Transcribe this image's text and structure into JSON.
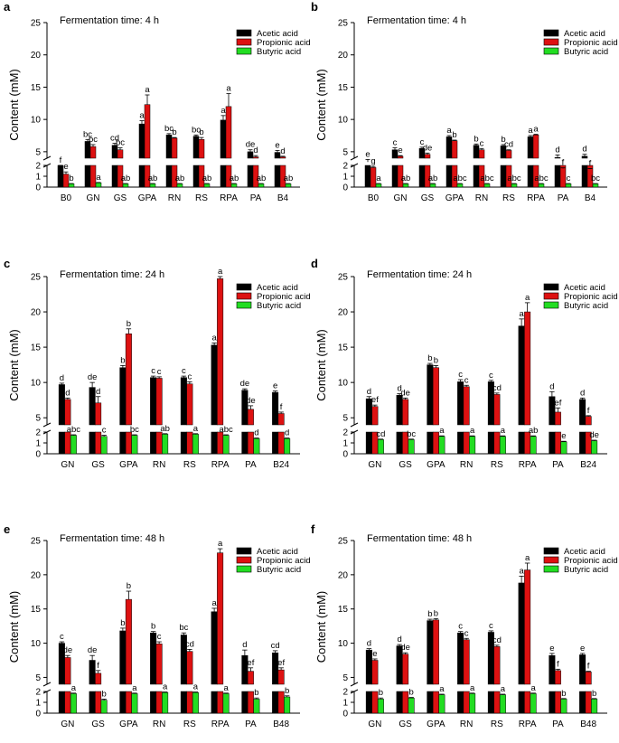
{
  "colors": {
    "acetic": "#000000",
    "propionic": "#dd1111",
    "butyric": "#22dd22",
    "axis": "#000000"
  },
  "legend": [
    "Acetic acid",
    "Propionic acid",
    "Butyric acid"
  ],
  "chart_data": [
    {
      "type": "bar",
      "panel_label": "a",
      "title": "Fermentation time: 4 h",
      "ylabel": "Content (mM)",
      "xlabel": "",
      "upper_ticks": [
        5,
        10,
        15,
        20,
        25
      ],
      "lower_ticks": [
        0,
        1,
        2
      ],
      "ylim_upper": [
        4,
        25
      ],
      "ylim_lower": [
        0,
        2
      ],
      "categories": [
        "B0",
        "GN",
        "GS",
        "GPA",
        "RN",
        "RS",
        "RPA",
        "PA",
        "B4"
      ],
      "series": [
        {
          "name": "Acetic acid",
          "values": [
            2.0,
            6.6,
            6.0,
            9.3,
            7.6,
            7.4,
            9.9,
            5.0,
            4.9
          ],
          "errors": [
            0.4,
            0.3,
            0.3,
            0.5,
            0.2,
            0.2,
            0.7,
            0.3,
            0.3
          ],
          "letters": [
            "f",
            "bc",
            "cd",
            "a",
            "bc",
            "bc",
            "a",
            "de",
            "e"
          ]
        },
        {
          "name": "Propionic acid",
          "values": [
            1.2,
            5.8,
            5.3,
            12.3,
            7.1,
            6.9,
            12.0,
            4.2,
            4.2
          ],
          "errors": [
            0.2,
            0.3,
            0.3,
            1.5,
            0.1,
            0.3,
            2.0,
            0.2,
            0.1
          ],
          "letters": [
            "e",
            "bc",
            "bc",
            "a",
            "b",
            "b",
            "a",
            "d",
            "d"
          ]
        },
        {
          "name": "Butyric acid",
          "values": [
            0.3,
            0.4,
            0.3,
            0.3,
            0.3,
            0.3,
            0.3,
            0.3,
            0.3
          ],
          "errors": [
            0.03,
            0.03,
            0.03,
            0.03,
            0.03,
            0.03,
            0.03,
            0.03,
            0.03
          ],
          "letters": [
            "b",
            "a",
            "ab",
            "ab",
            "ab",
            "ab",
            "ab",
            "ab",
            "ab"
          ]
        }
      ]
    },
    {
      "type": "bar",
      "panel_label": "b",
      "title": "Fermentation time: 4 h",
      "ylabel": "Content (mM)",
      "xlabel": "",
      "upper_ticks": [
        5,
        10,
        15,
        20,
        25
      ],
      "lower_ticks": [
        0,
        1,
        2
      ],
      "ylim_upper": [
        4,
        25
      ],
      "ylim_lower": [
        0,
        2
      ],
      "categories": [
        "B0",
        "GN",
        "GS",
        "GPA",
        "RN",
        "RS",
        "RPA",
        "PA",
        "B4"
      ],
      "series": [
        {
          "name": "Acetic acid",
          "values": [
            3.4,
            5.3,
            5.5,
            7.3,
            6.0,
            5.9,
            7.3,
            4.1,
            4.3
          ],
          "errors": [
            0.4,
            0.3,
            0.2,
            0.2,
            0.2,
            0.2,
            0.2,
            0.4,
            0.3
          ],
          "letters": [
            "e",
            "c",
            "c",
            "a",
            "b",
            "b",
            "a",
            "d",
            "d"
          ]
        },
        {
          "name": "Propionic acid",
          "values": [
            1.8,
            4.3,
            4.6,
            6.7,
            5.3,
            5.2,
            7.6,
            2.4,
            2.3
          ],
          "errors": [
            0.1,
            0.1,
            0.2,
            0.1,
            0.2,
            0.1,
            0.1,
            0.1,
            0.1
          ],
          "letters": [
            "g",
            "e",
            "de",
            "b",
            "c",
            "cd",
            "a",
            "f",
            "f"
          ]
        },
        {
          "name": "Butyric acid",
          "values": [
            0.3,
            0.3,
            0.3,
            0.3,
            0.3,
            0.3,
            0.3,
            0.3,
            0.3
          ],
          "errors": [
            0.03,
            0.03,
            0.03,
            0.03,
            0.03,
            0.03,
            0.03,
            0.03,
            0.03
          ],
          "letters": [
            "a",
            "ab",
            "ab",
            "abc",
            "abc",
            "abc",
            "abc",
            "c",
            "bc"
          ]
        }
      ]
    },
    {
      "type": "bar",
      "panel_label": "c",
      "title": "Fermentation time: 24 h",
      "ylabel": "Content (mM)",
      "xlabel": "",
      "upper_ticks": [
        5,
        10,
        15,
        20,
        25
      ],
      "lower_ticks": [
        0,
        1,
        2
      ],
      "ylim_upper": [
        4,
        25
      ],
      "ylim_lower": [
        0,
        2
      ],
      "categories": [
        "GN",
        "GS",
        "GPA",
        "RN",
        "RS",
        "RPA",
        "PA",
        "B24"
      ],
      "series": [
        {
          "name": "Acetic acid",
          "values": [
            9.7,
            9.3,
            12.1,
            10.7,
            10.7,
            15.3,
            8.9,
            8.6
          ],
          "errors": [
            0.2,
            0.7,
            0.3,
            0.2,
            0.2,
            0.3,
            0.2,
            0.2
          ],
          "letters": [
            "d",
            "de",
            "b",
            "c",
            "c",
            "a",
            "de",
            "e"
          ]
        },
        {
          "name": "Propionic acid",
          "values": [
            7.6,
            7.1,
            16.9,
            10.6,
            9.8,
            24.7,
            6.2,
            5.6
          ],
          "errors": [
            0.2,
            0.9,
            0.7,
            0.2,
            0.3,
            0.6,
            0.5,
            0.2
          ],
          "letters": [
            "d",
            "d",
            "b",
            "c",
            "c",
            "a",
            "de",
            "f"
          ]
        },
        {
          "name": "Butyric acid",
          "values": [
            1.7,
            1.6,
            1.7,
            1.8,
            1.8,
            1.7,
            1.4,
            1.4
          ],
          "errors": [
            0.05,
            0.1,
            0.05,
            0.05,
            0.05,
            0.05,
            0.05,
            0.05
          ],
          "letters": [
            "abc",
            "c",
            "bc",
            "ab",
            "a",
            "abc",
            "d",
            "d"
          ]
        }
      ]
    },
    {
      "type": "bar",
      "panel_label": "d",
      "title": "Fermentation time: 24 h",
      "ylabel": "Content (mM)",
      "xlabel": "",
      "upper_ticks": [
        5,
        10,
        15,
        20,
        25
      ],
      "lower_ticks": [
        0,
        1,
        2
      ],
      "ylim_upper": [
        4,
        25
      ],
      "ylim_lower": [
        0,
        2
      ],
      "categories": [
        "GN",
        "GS",
        "GPA",
        "RN",
        "RS",
        "RPA",
        "PA",
        "B24"
      ],
      "series": [
        {
          "name": "Acetic acid",
          "values": [
            7.7,
            8.2,
            12.5,
            10.1,
            10.1,
            18.0,
            8.0,
            7.6
          ],
          "errors": [
            0.3,
            0.2,
            0.2,
            0.3,
            0.2,
            1.0,
            0.7,
            0.2
          ],
          "letters": [
            "d",
            "d",
            "b",
            "c",
            "c",
            "a",
            "d",
            "d"
          ]
        },
        {
          "name": "Propionic acid",
          "values": [
            6.6,
            7.6,
            12.1,
            9.4,
            8.3,
            20.0,
            5.8,
            5.2
          ],
          "errors": [
            0.2,
            0.2,
            0.3,
            0.2,
            0.2,
            1.3,
            0.6,
            0.1
          ],
          "letters": [
            "ef",
            "de",
            "b",
            "c",
            "cd",
            "a",
            "ef",
            "f"
          ]
        },
        {
          "name": "Butyric acid",
          "values": [
            1.3,
            1.3,
            1.6,
            1.6,
            1.6,
            1.6,
            1.1,
            1.2
          ],
          "errors": [
            0.05,
            0.05,
            0.05,
            0.05,
            0.05,
            0.05,
            0.05,
            0.05
          ],
          "letters": [
            "cd",
            "bc",
            "a",
            "a",
            "a",
            "ab",
            "e",
            "de"
          ]
        }
      ]
    },
    {
      "type": "bar",
      "panel_label": "e",
      "title": "Fermentation time: 48 h",
      "ylabel": "Content (mM)",
      "xlabel": "",
      "upper_ticks": [
        5,
        10,
        15,
        20,
        25
      ],
      "lower_ticks": [
        0,
        1,
        2
      ],
      "ylim_upper": [
        4,
        25
      ],
      "ylim_lower": [
        0,
        2
      ],
      "categories": [
        "GN",
        "GS",
        "GPA",
        "RN",
        "RS",
        "RPA",
        "PA",
        "B48"
      ],
      "series": [
        {
          "name": "Acetic acid",
          "values": [
            10.0,
            7.5,
            11.8,
            11.5,
            11.2,
            14.6,
            8.2,
            8.6
          ],
          "errors": [
            0.2,
            0.7,
            0.4,
            0.2,
            0.3,
            0.5,
            0.8,
            0.3
          ],
          "letters": [
            "c",
            "de",
            "b",
            "b",
            "bc",
            "a",
            "d",
            "cd"
          ]
        },
        {
          "name": "Propionic acid",
          "values": [
            7.9,
            5.6,
            16.4,
            9.9,
            8.8,
            23.2,
            5.9,
            6.1
          ],
          "errors": [
            0.3,
            0.4,
            1.2,
            0.3,
            0.3,
            0.6,
            0.5,
            0.3
          ],
          "letters": [
            "de",
            "f",
            "b",
            "c",
            "cd",
            "a",
            "ef",
            "ef"
          ]
        },
        {
          "name": "Butyric acid",
          "values": [
            1.8,
            1.2,
            1.8,
            1.9,
            1.9,
            1.8,
            1.3,
            1.5
          ],
          "errors": [
            0.05,
            0.1,
            0.05,
            0.05,
            0.05,
            0.05,
            0.1,
            0.1
          ],
          "letters": [
            "a",
            "b",
            "a",
            "a",
            "a",
            "a",
            "b",
            "b"
          ]
        }
      ]
    },
    {
      "type": "bar",
      "panel_label": "f",
      "title": "Fermentation time: 48 h",
      "ylabel": "Content (mM)",
      "xlabel": "",
      "upper_ticks": [
        5,
        10,
        15,
        20,
        25
      ],
      "lower_ticks": [
        0,
        1,
        2
      ],
      "ylim_upper": [
        4,
        25
      ],
      "ylim_lower": [
        0,
        2
      ],
      "categories": [
        "GN",
        "GS",
        "GPA",
        "RN",
        "RS",
        "RPA",
        "PA",
        "B48"
      ],
      "series": [
        {
          "name": "Acetic acid",
          "values": [
            9.0,
            9.6,
            13.3,
            11.5,
            11.6,
            18.8,
            8.2,
            8.3
          ],
          "errors": [
            0.2,
            0.2,
            0.2,
            0.2,
            0.2,
            1.0,
            0.3,
            0.2
          ],
          "letters": [
            "d",
            "d",
            "b",
            "c",
            "c",
            "a",
            "e",
            "e"
          ]
        },
        {
          "name": "Propionic acid",
          "values": [
            7.5,
            8.4,
            13.4,
            10.5,
            9.5,
            20.7,
            6.0,
            5.8
          ],
          "errors": [
            0.2,
            0.2,
            0.2,
            0.2,
            0.2,
            1.0,
            0.2,
            0.1
          ],
          "letters": [
            "e",
            "de",
            "b",
            "c",
            "cd",
            "a",
            "f",
            "f"
          ]
        },
        {
          "name": "Butyric acid",
          "values": [
            1.3,
            1.4,
            1.7,
            1.8,
            1.7,
            1.8,
            1.3,
            1.3
          ],
          "errors": [
            0.1,
            0.05,
            0.05,
            0.05,
            0.05,
            0.05,
            0.05,
            0.05
          ],
          "letters": [
            "b",
            "b",
            "a",
            "a",
            "a",
            "a",
            "b",
            "b"
          ]
        }
      ]
    }
  ]
}
